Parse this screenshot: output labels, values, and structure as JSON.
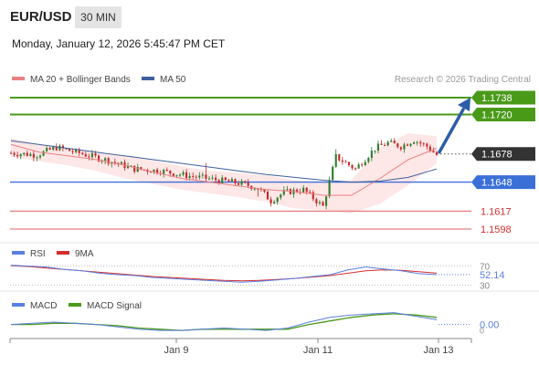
{
  "header": {
    "symbol": "EUR/USD",
    "timeframe": "30 MIN",
    "datetime": "Monday, January 12, 2026 5:45:47 PM CET"
  },
  "colors": {
    "candle_up": "#2f7d2f",
    "candle_down": "#c62828",
    "band_fill": "#fde3e3",
    "ma20": "#e98080",
    "ma50": "#3d5f9e",
    "resistance": "#4a9a1a",
    "pivot": "#3b6fd8",
    "support": "#e98080",
    "support_text": "#d32f2f",
    "current": "#333333",
    "arrow": "#2c5da8",
    "rsi": "#5b7fe0",
    "rsi_ma": "#d32f2f",
    "macd": "#5b7fe0",
    "macd_signal": "#4a9a1a"
  },
  "chart_data": [
    {
      "type": "candlestick",
      "title": "EUR/USD 30 MIN",
      "legend": [
        {
          "name": "MA 20 + Bollinger Bands",
          "color": "#e98080"
        },
        {
          "name": "MA 50",
          "color": "#3d5f9e"
        }
      ],
      "legend_placement": "top-left",
      "watermark": "Research © 2026 Trading Central",
      "x_ticks": [
        "Jan 9",
        "Jan 11",
        "Jan 13"
      ],
      "price_levels": [
        {
          "value": 1.1738,
          "label": "1.1738",
          "kind": "resistance"
        },
        {
          "value": 1.172,
          "label": "1.1720",
          "kind": "resistance"
        },
        {
          "value": 1.1678,
          "label": "1.1678",
          "kind": "current"
        },
        {
          "value": 1.1648,
          "label": "1.1648",
          "kind": "pivot"
        },
        {
          "value": 1.1617,
          "label": "1.1617",
          "kind": "support"
        },
        {
          "value": 1.1598,
          "label": "1.1598",
          "kind": "support"
        }
      ],
      "anchors": [
        [
          0,
          1.1679
        ],
        [
          8,
          1.1677
        ],
        [
          14,
          1.1685
        ],
        [
          22,
          1.1678
        ],
        [
          30,
          1.1671
        ],
        [
          38,
          1.1662
        ],
        [
          46,
          1.166
        ],
        [
          54,
          1.1655
        ],
        [
          62,
          1.1651
        ],
        [
          70,
          1.1647
        ],
        [
          76,
          1.1642
        ],
        [
          80,
          1.1628
        ],
        [
          84,
          1.1637
        ],
        [
          90,
          1.164
        ],
        [
          96,
          1.1622
        ],
        [
          100,
          1.1675
        ],
        [
          106,
          1.1662
        ],
        [
          112,
          1.1684
        ],
        [
          116,
          1.169
        ],
        [
          120,
          1.1686
        ],
        [
          124,
          1.1693
        ],
        [
          128,
          1.1686
        ],
        [
          131,
          1.1677
        ]
      ],
      "candle_count": 132,
      "ma20": [
        1.1688,
        1.168,
        1.1676,
        1.1672,
        1.1666,
        1.1659,
        1.1652,
        1.1648,
        1.1644,
        1.164,
        1.1638,
        1.1634,
        1.1634,
        1.1652,
        1.1672,
        1.1684
      ],
      "bb_upper": [
        1.1695,
        1.1688,
        1.1684,
        1.168,
        1.1676,
        1.1671,
        1.1665,
        1.166,
        1.1658,
        1.1655,
        1.165,
        1.1648,
        1.165,
        1.1685,
        1.17,
        1.1697
      ],
      "bb_lower": [
        1.1675,
        1.167,
        1.1666,
        1.166,
        1.1652,
        1.1646,
        1.164,
        1.1636,
        1.1632,
        1.1627,
        1.162,
        1.1618,
        1.1615,
        1.1625,
        1.1645,
        1.1668
      ],
      "ma50": [
        1.1692,
        1.1688,
        1.1684,
        1.168,
        1.1676,
        1.1672,
        1.1668,
        1.1664,
        1.166,
        1.1656,
        1.1653,
        1.165,
        1.1648,
        1.1649,
        1.1653,
        1.1662
      ],
      "projection": {
        "from": 1.168,
        "to": 1.1738
      }
    },
    {
      "type": "line",
      "series": [
        {
          "name": "RSI",
          "color": "#5b7fe0"
        },
        {
          "name": "9MA",
          "color": "#d32f2f"
        }
      ],
      "levels": [
        70,
        30
      ],
      "ylim": [
        25,
        75
      ],
      "value_label": "52.14",
      "rsi": [
        72,
        70,
        68,
        63,
        60,
        55,
        52,
        50,
        46,
        44,
        42,
        40,
        38,
        36,
        38,
        41,
        44,
        48,
        52,
        62,
        68,
        64,
        60,
        54,
        52
      ],
      "rsi_ma": [
        71,
        69,
        66,
        63,
        60,
        57,
        54,
        51,
        48,
        46,
        44,
        42,
        40,
        39,
        40,
        42,
        44,
        47,
        50,
        55,
        60,
        62,
        61,
        58,
        55
      ]
    },
    {
      "type": "line",
      "series": [
        {
          "name": "MACD",
          "color": "#5b7fe0"
        },
        {
          "name": "MACD Signal",
          "color": "#4a9a1a"
        }
      ],
      "ylim": [
        -0.0008,
        0.0012
      ],
      "value_label": "0.00",
      "tick_label": "0",
      "macd": [
        0.0,
        0.0001,
        0.0002,
        0.0001,
        0.0,
        -0.0002,
        -0.0004,
        -0.0005,
        -0.0005,
        -0.0004,
        -0.0003,
        -0.0004,
        -0.0005,
        -0.0003,
        0.0002,
        0.0006,
        0.0008,
        0.0009,
        0.001,
        0.0007,
        0.0004
      ],
      "macd_signal": [
        0.0,
        0.0,
        0.0001,
        0.0001,
        0.0,
        -0.0001,
        -0.0003,
        -0.0004,
        -0.0005,
        -0.0004,
        -0.0004,
        -0.0004,
        -0.0004,
        -0.0004,
        0.0,
        0.0003,
        0.0006,
        0.0008,
        0.0009,
        0.0008,
        0.0006
      ]
    }
  ]
}
